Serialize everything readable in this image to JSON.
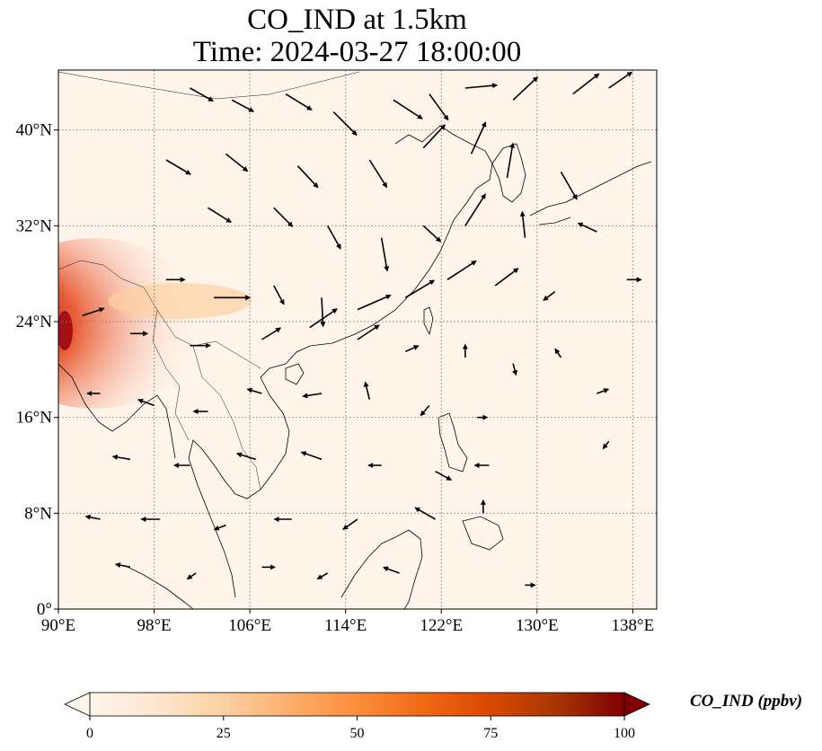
{
  "title": {
    "line1": "CO_IND at 1.5km",
    "line2": "Time: 2024-03-27 18:00:00"
  },
  "map": {
    "projection": "PlateCarree",
    "extent": {
      "lon_min": 90,
      "lon_max": 140,
      "lat_min": 0,
      "lat_max": 45
    },
    "lon_ticks": [
      {
        "value": 90,
        "label": "90°E"
      },
      {
        "value": 98,
        "label": "98°E"
      },
      {
        "value": 106,
        "label": "106°E"
      },
      {
        "value": 114,
        "label": "114°E"
      },
      {
        "value": 122,
        "label": "122°E"
      },
      {
        "value": 130,
        "label": "130°E"
      },
      {
        "value": 138,
        "label": "138°E"
      }
    ],
    "lat_ticks": [
      {
        "value": 0,
        "label": "0°"
      },
      {
        "value": 8,
        "label": "8°N"
      },
      {
        "value": 16,
        "label": "16°N"
      },
      {
        "value": 24,
        "label": "24°N"
      },
      {
        "value": 32,
        "label": "32°N"
      },
      {
        "value": 40,
        "label": "40°N"
      }
    ],
    "gridlines": true,
    "background_color": "#fff5eb",
    "plume_color": "#e8603a",
    "plume_core_color": "#a50f15"
  },
  "colorbar": {
    "label": "CO_IND (ppbv)",
    "min": 0,
    "max": 100,
    "extend": "both",
    "colormap": "OrRd",
    "stops": [
      "#fff5eb",
      "#fee6ce",
      "#fdd0a2",
      "#fdae6b",
      "#fd8d3c",
      "#f16913",
      "#d94801",
      "#a63603",
      "#7f0000"
    ],
    "ticks": [
      {
        "value": 0,
        "label": "0"
      },
      {
        "value": 25,
        "label": "25"
      },
      {
        "value": 50,
        "label": "50"
      },
      {
        "value": 75,
        "label": "75"
      },
      {
        "value": 100,
        "label": "100"
      }
    ]
  },
  "wind_vectors": {
    "color": "#000000",
    "samples": [
      {
        "lon": 101,
        "lat": 43.5,
        "u": 1.6,
        "v": -0.9
      },
      {
        "lon": 104.5,
        "lat": 42.5,
        "u": 1.5,
        "v": -0.8
      },
      {
        "lon": 109,
        "lat": 43,
        "u": 1.8,
        "v": -1.1
      },
      {
        "lon": 113,
        "lat": 41.5,
        "u": 1.6,
        "v": -1.6
      },
      {
        "lon": 118,
        "lat": 42.5,
        "u": 2.0,
        "v": -1.3
      },
      {
        "lon": 121,
        "lat": 43,
        "u": 1.3,
        "v": -1.8
      },
      {
        "lon": 124,
        "lat": 43.5,
        "u": 2.2,
        "v": 0.2
      },
      {
        "lon": 128,
        "lat": 42.5,
        "u": 1.7,
        "v": 1.6
      },
      {
        "lon": 133,
        "lat": 43,
        "u": 1.8,
        "v": 1.4
      },
      {
        "lon": 136,
        "lat": 43.5,
        "u": 1.6,
        "v": 1.1
      },
      {
        "lon": 99,
        "lat": 37.5,
        "u": 1.7,
        "v": -1.0
      },
      {
        "lon": 104,
        "lat": 38,
        "u": 1.5,
        "v": -1.2
      },
      {
        "lon": 110,
        "lat": 37,
        "u": 1.4,
        "v": -1.5
      },
      {
        "lon": 116,
        "lat": 37.5,
        "u": 1.2,
        "v": -1.9
      },
      {
        "lon": 120.5,
        "lat": 38.5,
        "u": 1.5,
        "v": 1.6
      },
      {
        "lon": 124.5,
        "lat": 38,
        "u": 1.0,
        "v": 2.2
      },
      {
        "lon": 127.5,
        "lat": 36,
        "u": 0.4,
        "v": 2.4
      },
      {
        "lon": 132,
        "lat": 36.5,
        "u": 1.1,
        "v": -1.9
      },
      {
        "lon": 102.5,
        "lat": 33.5,
        "u": 1.6,
        "v": -1.0
      },
      {
        "lon": 108,
        "lat": 33.5,
        "u": 1.3,
        "v": -1.3
      },
      {
        "lon": 112.5,
        "lat": 32,
        "u": 0.9,
        "v": -1.6
      },
      {
        "lon": 117,
        "lat": 31,
        "u": 0.4,
        "v": -2.3
      },
      {
        "lon": 120.5,
        "lat": 32,
        "u": 1.2,
        "v": -1.1
      },
      {
        "lon": 124,
        "lat": 32,
        "u": 1.4,
        "v": 2.2
      },
      {
        "lon": 129,
        "lat": 31,
        "u": -0.2,
        "v": 1.8
      },
      {
        "lon": 135,
        "lat": 31.5,
        "u": -1.3,
        "v": 0.6
      },
      {
        "lon": 99,
        "lat": 27.5,
        "u": 1.3,
        "v": 0.0
      },
      {
        "lon": 103,
        "lat": 26,
        "u": 2.5,
        "v": 0.0
      },
      {
        "lon": 108,
        "lat": 27,
        "u": 0.7,
        "v": -1.3
      },
      {
        "lon": 112,
        "lat": 26,
        "u": 0.1,
        "v": -2.0
      },
      {
        "lon": 115,
        "lat": 25,
        "u": 2.3,
        "v": 1.0
      },
      {
        "lon": 119,
        "lat": 26,
        "u": 2.0,
        "v": 1.2
      },
      {
        "lon": 122.5,
        "lat": 27.5,
        "u": 2.0,
        "v": 1.3
      },
      {
        "lon": 126.5,
        "lat": 27,
        "u": 1.6,
        "v": 1.2
      },
      {
        "lon": 131.5,
        "lat": 26.5,
        "u": -0.8,
        "v": -0.6
      },
      {
        "lon": 137.5,
        "lat": 27.5,
        "u": 1.0,
        "v": 0.0
      },
      {
        "lon": 92,
        "lat": 24.5,
        "u": 1.5,
        "v": 0.5
      },
      {
        "lon": 96,
        "lat": 23,
        "u": 1.2,
        "v": 0.0
      },
      {
        "lon": 101,
        "lat": 22,
        "u": 1.4,
        "v": 0.0
      },
      {
        "lon": 107,
        "lat": 22.5,
        "u": 1.3,
        "v": 0.8
      },
      {
        "lon": 111,
        "lat": 23.5,
        "u": 1.9,
        "v": 1.3
      },
      {
        "lon": 115,
        "lat": 22.5,
        "u": 1.5,
        "v": 1.0
      },
      {
        "lon": 119,
        "lat": 21.5,
        "u": 0.9,
        "v": 0.4
      },
      {
        "lon": 124,
        "lat": 21,
        "u": 0.0,
        "v": 0.9
      },
      {
        "lon": 128,
        "lat": 20.5,
        "u": 0.2,
        "v": -0.8
      },
      {
        "lon": 132,
        "lat": 21,
        "u": -0.4,
        "v": 0.6
      },
      {
        "lon": 93.5,
        "lat": 18,
        "u": -0.9,
        "v": 0.0
      },
      {
        "lon": 98,
        "lat": 17,
        "u": -1.1,
        "v": 0.4
      },
      {
        "lon": 102.5,
        "lat": 16.5,
        "u": -1.0,
        "v": 0.0
      },
      {
        "lon": 107,
        "lat": 18,
        "u": -1.0,
        "v": 0.3
      },
      {
        "lon": 112,
        "lat": 18,
        "u": -1.3,
        "v": -0.2
      },
      {
        "lon": 116,
        "lat": 17.5,
        "u": -0.3,
        "v": 1.2
      },
      {
        "lon": 121,
        "lat": 17,
        "u": -0.6,
        "v": -0.7
      },
      {
        "lon": 125,
        "lat": 16,
        "u": 0.7,
        "v": 0.0
      },
      {
        "lon": 135,
        "lat": 18,
        "u": 0.8,
        "v": 0.3
      },
      {
        "lon": 96,
        "lat": 12.5,
        "u": -1.2,
        "v": 0.2
      },
      {
        "lon": 101,
        "lat": 12,
        "u": -1.1,
        "v": 0.0
      },
      {
        "lon": 106.5,
        "lat": 12.5,
        "u": -1.3,
        "v": 0.4
      },
      {
        "lon": 112,
        "lat": 12.5,
        "u": -1.4,
        "v": 0.5
      },
      {
        "lon": 117,
        "lat": 12,
        "u": -0.9,
        "v": 0.0
      },
      {
        "lon": 121.5,
        "lat": 11.5,
        "u": 1.1,
        "v": -0.6
      },
      {
        "lon": 126,
        "lat": 12,
        "u": -1.0,
        "v": 0.0
      },
      {
        "lon": 136,
        "lat": 14,
        "u": -0.4,
        "v": -0.5
      },
      {
        "lon": 93.5,
        "lat": 7.5,
        "u": -1.0,
        "v": 0.2
      },
      {
        "lon": 98.5,
        "lat": 7.5,
        "u": -1.3,
        "v": 0.0
      },
      {
        "lon": 104,
        "lat": 7,
        "u": -0.8,
        "v": -0.3
      },
      {
        "lon": 109.5,
        "lat": 7.5,
        "u": -1.2,
        "v": 0.0
      },
      {
        "lon": 115,
        "lat": 7.5,
        "u": -1.0,
        "v": -0.7
      },
      {
        "lon": 121.5,
        "lat": 7.5,
        "u": -1.4,
        "v": 0.8
      },
      {
        "lon": 125.5,
        "lat": 8,
        "u": 0.0,
        "v": 0.9
      },
      {
        "lon": 96,
        "lat": 3.5,
        "u": -1.0,
        "v": 0.2
      },
      {
        "lon": 101.5,
        "lat": 3,
        "u": -0.6,
        "v": -0.4
      },
      {
        "lon": 107,
        "lat": 3.5,
        "u": 0.9,
        "v": 0.0
      },
      {
        "lon": 112.5,
        "lat": 3,
        "u": -0.7,
        "v": -0.4
      },
      {
        "lon": 118.5,
        "lat": 3,
        "u": -1.1,
        "v": 0.4
      },
      {
        "lon": 129,
        "lat": 2,
        "u": 0.7,
        "v": 0.0
      }
    ]
  }
}
